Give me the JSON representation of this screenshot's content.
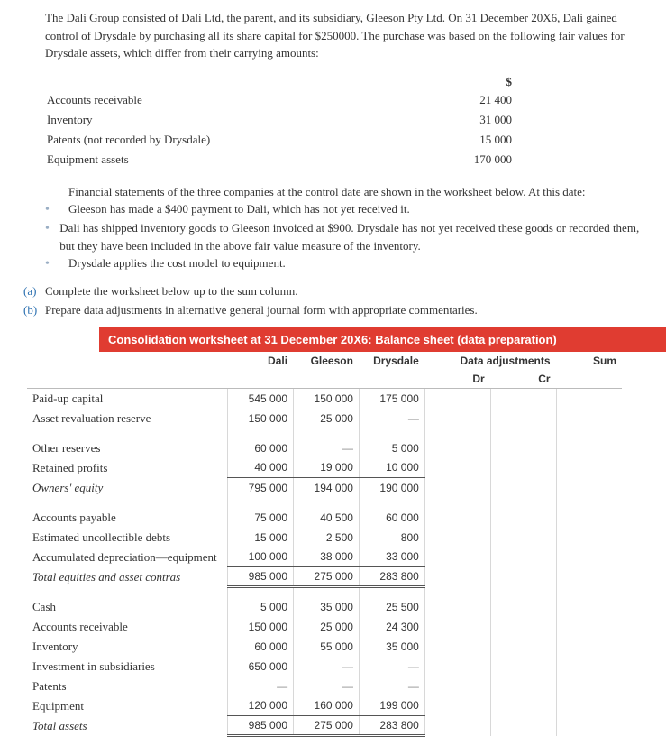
{
  "intro": {
    "p1": "The Dali Group consisted of Dali Ltd, the parent, and its subsidiary, Gleeson Pty Ltd. On 31 December 20X6, Dali gained control of Drysdale by purchasing all its share capital for $250000. The purchase was based on the following fair values for Drysdale assets, which differ from their carrying amounts:"
  },
  "fair_values": {
    "currency": "$",
    "rows": [
      {
        "label": "Accounts receivable",
        "value": "21 400"
      },
      {
        "label": "Inventory",
        "value": "31 000"
      },
      {
        "label": "Patents (not recorded by Drysdale)",
        "value": "15 000"
      },
      {
        "label": "Equipment assets",
        "value": "170 000"
      }
    ]
  },
  "notes": {
    "lead": "Financial statements of the three companies at the control date are shown in the worksheet below. At this date:",
    "items": [
      "Gleeson has made a $400 payment to Dali, which has not yet received it.",
      "Dali has shipped inventory goods to Gleeson invoiced at $900. Drysdale has not yet received these goods or recorded them, but they have been included in the above fair value measure of the inventory.",
      "Drysdale applies the cost model to equipment."
    ]
  },
  "tasks": {
    "a": {
      "lbl": "(a)",
      "text": "Complete the worksheet below up to the sum column."
    },
    "b": {
      "lbl": "(b)",
      "text": "Prepare data adjustments in alternative general journal form with appropriate commentaries."
    }
  },
  "banner": "Consolidation worksheet at 31 December 20X6: Balance sheet (data preparation)",
  "ws": {
    "headers": {
      "dali": "Dali",
      "gleeson": "Gleeson",
      "drysdale": "Drysdale",
      "adj": "Data adjustments",
      "sum": "Sum",
      "dr": "Dr",
      "cr": "Cr"
    },
    "sections": [
      {
        "rows": [
          {
            "label": "Paid-up capital",
            "dali": "545 000",
            "gleeson": "150 000",
            "drysdale": "175 000"
          },
          {
            "label": "Asset revaluation reserve",
            "dali": "150 000",
            "gleeson": "25 000",
            "drysdale": "—"
          }
        ]
      },
      {
        "rows": [
          {
            "label": "Other reserves",
            "dali": "60 000",
            "gleeson": "—",
            "drysdale": "5 000"
          },
          {
            "label": "Retained profits",
            "dali": "40 000",
            "gleeson": "19 000",
            "drysdale": "10 000",
            "subtotal": true
          },
          {
            "label": "Owners' equity",
            "italic": true,
            "dali": "795 000",
            "gleeson": "194 000",
            "drysdale": "190 000"
          }
        ]
      },
      {
        "rows": [
          {
            "label": "Accounts payable",
            "dali": "75 000",
            "gleeson": "40 500",
            "drysdale": "60 000"
          },
          {
            "label": "Estimated uncollectible debts",
            "dali": "15 000",
            "gleeson": "2 500",
            "drysdale": "800"
          },
          {
            "label": "Accumulated depreciation—equipment",
            "dali": "100 000",
            "gleeson": "38 000",
            "drysdale": "33 000",
            "subtotal": true
          },
          {
            "label": "Total equities and asset contras",
            "italic": true,
            "dali": "985 000",
            "gleeson": "275 000",
            "drysdale": "283 800",
            "grand": true
          }
        ]
      },
      {
        "rows": [
          {
            "label": "Cash",
            "dali": "5 000",
            "gleeson": "35 000",
            "drysdale": "25 500"
          },
          {
            "label": "Accounts receivable",
            "dali": "150 000",
            "gleeson": "25 000",
            "drysdale": "24 300"
          },
          {
            "label": "Inventory",
            "dali": "60 000",
            "gleeson": "55 000",
            "drysdale": "35 000"
          },
          {
            "label": "Investment in subsidiaries",
            "dali": "650 000",
            "gleeson": "—",
            "drysdale": "—"
          },
          {
            "label": "Patents",
            "dali": "—",
            "gleeson": "—",
            "drysdale": "—"
          },
          {
            "label": "Equipment",
            "dali": "120 000",
            "gleeson": "160 000",
            "drysdale": "199 000",
            "subtotal": true
          },
          {
            "label": "Total assets",
            "italic": true,
            "dali": "985 000",
            "gleeson": "275 000",
            "drysdale": "283 800",
            "grand": true
          }
        ]
      }
    ]
  }
}
